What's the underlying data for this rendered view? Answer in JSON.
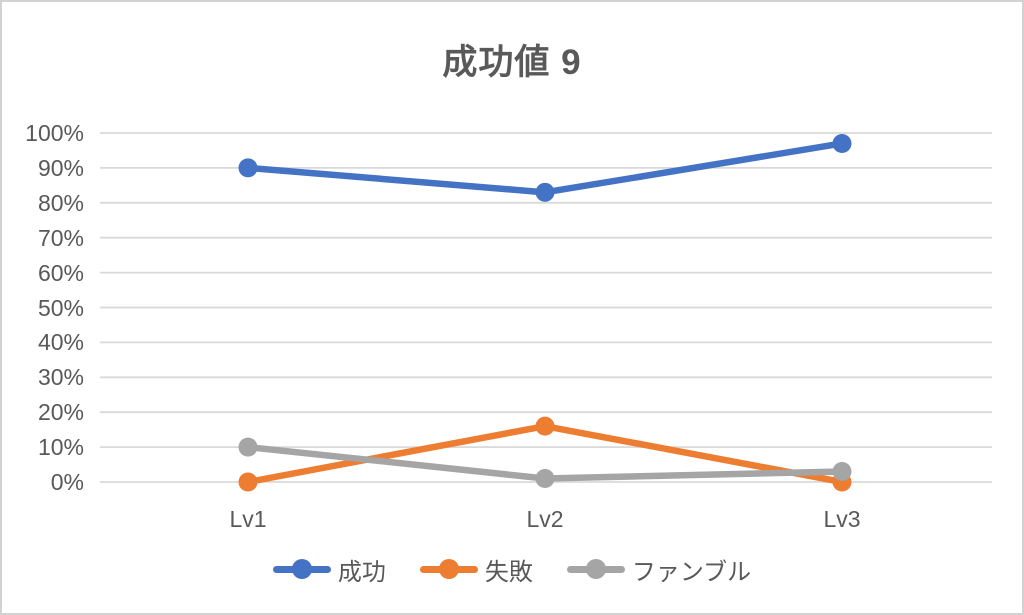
{
  "chart_data": {
    "type": "line",
    "title": "成功値 9",
    "categories": [
      "Lv1",
      "Lv2",
      "Lv3"
    ],
    "series": [
      {
        "name": "成功",
        "color": "#4472C4",
        "values": [
          90,
          83,
          97
        ]
      },
      {
        "name": "失敗",
        "color": "#ED7D31",
        "values": [
          0,
          16,
          0
        ]
      },
      {
        "name": "ファンブル",
        "color": "#A5A5A5",
        "values": [
          10,
          1,
          3
        ]
      }
    ],
    "xlabel": "",
    "ylabel": "",
    "ylim": [
      0,
      100
    ],
    "y_tick_step": 10,
    "y_tick_labels": [
      "0%",
      "10%",
      "20%",
      "30%",
      "40%",
      "50%",
      "60%",
      "70%",
      "80%",
      "90%",
      "100%"
    ],
    "grid": true,
    "legend_position": "bottom",
    "legend_entries": [
      "成功",
      "失敗",
      "ファンブル"
    ]
  },
  "colors": {
    "background": "#FFFFFF",
    "border": "#D2D2D2",
    "gridline": "#D9D9D9",
    "text": "#595959"
  }
}
